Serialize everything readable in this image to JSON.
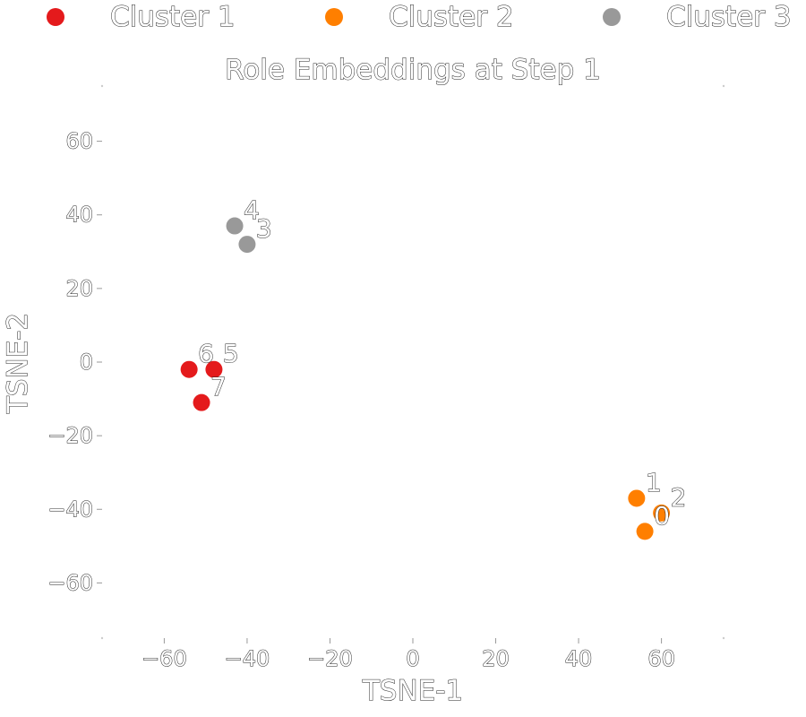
{
  "chart_data": {
    "type": "scatter",
    "title": "Role Embeddings at Step 1",
    "xlabel": "TSNE-1",
    "ylabel": "TSNE-2",
    "xlim": [
      -75,
      75
    ],
    "ylim": [
      -75,
      75
    ],
    "x_ticks": [
      -60,
      -40,
      -20,
      0,
      20,
      40,
      60
    ],
    "y_ticks": [
      60,
      40,
      20,
      0,
      -20,
      -40,
      -60
    ],
    "x_tick_labels": [
      "−60",
      "−40",
      "−20",
      "0",
      "20",
      "40",
      "60"
    ],
    "y_tick_labels": [
      "60",
      "40",
      "20",
      "0",
      "−20",
      "−40",
      "−60"
    ],
    "grid": false,
    "legend_position": "top",
    "series": [
      {
        "name": "Cluster 1",
        "color": "#e41a1c",
        "points": [
          {
            "label": "6",
            "x": -54,
            "y": -2
          },
          {
            "label": "5",
            "x": -48,
            "y": -2
          },
          {
            "label": "7",
            "x": -51,
            "y": -11
          }
        ]
      },
      {
        "name": "Cluster 2",
        "color": "#ff7f00",
        "points": [
          {
            "label": "1",
            "x": 54,
            "y": -37
          },
          {
            "label": "0",
            "x": 56,
            "y": -46
          },
          {
            "label": "2",
            "x": 60,
            "y": -41
          }
        ]
      },
      {
        "name": "Cluster 3",
        "color": "#999999",
        "points": [
          {
            "label": "4",
            "x": -43,
            "y": 37
          },
          {
            "label": "3",
            "x": -40,
            "y": 32
          }
        ]
      }
    ]
  }
}
